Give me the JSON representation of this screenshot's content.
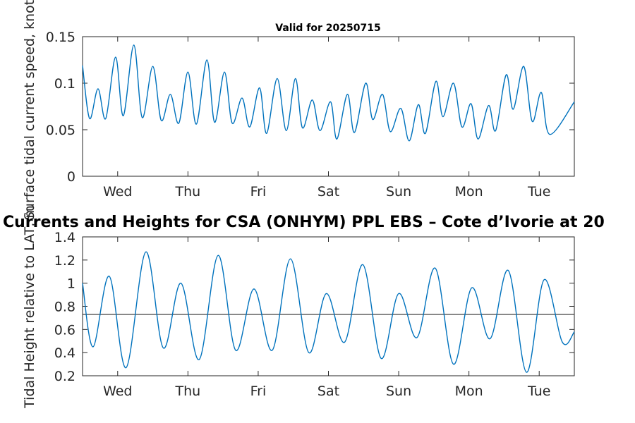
{
  "chart_data": [
    {
      "type": "line",
      "title": "Valid for 20250715",
      "ylabel": "Surface tidal current speed, knots",
      "xlabel": "",
      "xlim": [
        0,
        7
      ],
      "ylim": [
        0,
        0.15
      ],
      "x_ticks": [
        {
          "x": 0.5,
          "label": "Wed"
        },
        {
          "x": 1.5,
          "label": "Thu"
        },
        {
          "x": 2.5,
          "label": "Fri"
        },
        {
          "x": 3.5,
          "label": "Sat"
        },
        {
          "x": 4.5,
          "label": "Sun"
        },
        {
          "x": 5.5,
          "label": "Mon"
        },
        {
          "x": 6.5,
          "label": "Tue"
        }
      ],
      "y_ticks": [
        {
          "y": 0,
          "label": "0"
        },
        {
          "y": 0.05,
          "label": "0.05"
        },
        {
          "y": 0.1,
          "label": "0.1"
        },
        {
          "y": 0.15,
          "label": "0.15"
        }
      ],
      "grid": false,
      "series": [
        {
          "color": "#0072BD",
          "points": [
            [
              0.0,
              0.119
            ],
            [
              0.1,
              0.062
            ],
            [
              0.22,
              0.094
            ],
            [
              0.33,
              0.062
            ],
            [
              0.47,
              0.128
            ],
            [
              0.58,
              0.065
            ],
            [
              0.73,
              0.141
            ],
            [
              0.85,
              0.063
            ],
            [
              1.0,
              0.118
            ],
            [
              1.12,
              0.06
            ],
            [
              1.25,
              0.088
            ],
            [
              1.37,
              0.057
            ],
            [
              1.5,
              0.112
            ],
            [
              1.62,
              0.056
            ],
            [
              1.77,
              0.125
            ],
            [
              1.88,
              0.058
            ],
            [
              2.02,
              0.112
            ],
            [
              2.13,
              0.057
            ],
            [
              2.27,
              0.084
            ],
            [
              2.38,
              0.053
            ],
            [
              2.52,
              0.095
            ],
            [
              2.62,
              0.046
            ],
            [
              2.77,
              0.105
            ],
            [
              2.9,
              0.049
            ],
            [
              3.03,
              0.105
            ],
            [
              3.13,
              0.052
            ],
            [
              3.27,
              0.082
            ],
            [
              3.38,
              0.049
            ],
            [
              3.53,
              0.08
            ],
            [
              3.62,
              0.04
            ],
            [
              3.77,
              0.088
            ],
            [
              3.87,
              0.047
            ],
            [
              4.03,
              0.1
            ],
            [
              4.13,
              0.061
            ],
            [
              4.27,
              0.088
            ],
            [
              4.38,
              0.048
            ],
            [
              4.53,
              0.073
            ],
            [
              4.65,
              0.038
            ],
            [
              4.78,
              0.077
            ],
            [
              4.88,
              0.046
            ],
            [
              5.03,
              0.102
            ],
            [
              5.13,
              0.064
            ],
            [
              5.28,
              0.1
            ],
            [
              5.4,
              0.053
            ],
            [
              5.53,
              0.078
            ],
            [
              5.63,
              0.04
            ],
            [
              5.78,
              0.076
            ],
            [
              5.88,
              0.049
            ],
            [
              6.03,
              0.109
            ],
            [
              6.13,
              0.072
            ],
            [
              6.28,
              0.118
            ],
            [
              6.4,
              0.059
            ],
            [
              6.53,
              0.09
            ],
            [
              6.65,
              0.045
            ],
            [
              7.0,
              0.08
            ]
          ]
        }
      ]
    },
    {
      "type": "line",
      "title": "Currents and Heights for CSA (ONHYM) PPL EBS  – Cote d’Ivorie at 20",
      "ylabel": "Tidal Height relative to LAT, m",
      "xlabel": "",
      "xlim": [
        0,
        7
      ],
      "ylim": [
        0.2,
        1.4
      ],
      "x_ticks": [
        {
          "x": 0.5,
          "label": "Wed"
        },
        {
          "x": 1.5,
          "label": "Thu"
        },
        {
          "x": 2.5,
          "label": "Fri"
        },
        {
          "x": 3.5,
          "label": "Sat"
        },
        {
          "x": 4.5,
          "label": "Sun"
        },
        {
          "x": 5.5,
          "label": "Mon"
        },
        {
          "x": 6.5,
          "label": "Tue"
        }
      ],
      "y_ticks": [
        {
          "y": 0.2,
          "label": "0.2"
        },
        {
          "y": 0.4,
          "label": "0.4"
        },
        {
          "y": 0.6,
          "label": "0.6"
        },
        {
          "y": 0.8,
          "label": "0.8"
        },
        {
          "y": 1.0,
          "label": "1"
        },
        {
          "y": 1.2,
          "label": "1.2"
        },
        {
          "y": 1.4,
          "label": "1.4"
        }
      ],
      "grid": false,
      "reference_line": {
        "y": 0.73,
        "color": "#404040"
      },
      "series": [
        {
          "color": "#0072BD",
          "points": [
            [
              0.0,
              1.0
            ],
            [
              0.15,
              0.45
            ],
            [
              0.38,
              1.06
            ],
            [
              0.62,
              0.27
            ],
            [
              0.9,
              1.27
            ],
            [
              1.15,
              0.44
            ],
            [
              1.4,
              1.0
            ],
            [
              1.66,
              0.34
            ],
            [
              1.93,
              1.24
            ],
            [
              2.18,
              0.42
            ],
            [
              2.44,
              0.95
            ],
            [
              2.7,
              0.42
            ],
            [
              2.96,
              1.21
            ],
            [
              3.22,
              0.4
            ],
            [
              3.47,
              0.91
            ],
            [
              3.73,
              0.49
            ],
            [
              3.99,
              1.16
            ],
            [
              4.25,
              0.35
            ],
            [
              4.5,
              0.91
            ],
            [
              4.76,
              0.53
            ],
            [
              5.02,
              1.13
            ],
            [
              5.28,
              0.3
            ],
            [
              5.54,
              0.96
            ],
            [
              5.8,
              0.52
            ],
            [
              6.06,
              1.11
            ],
            [
              6.32,
              0.23
            ],
            [
              6.57,
              1.03
            ],
            [
              6.83,
              0.49
            ],
            [
              7.0,
              0.58
            ]
          ]
        }
      ]
    }
  ]
}
